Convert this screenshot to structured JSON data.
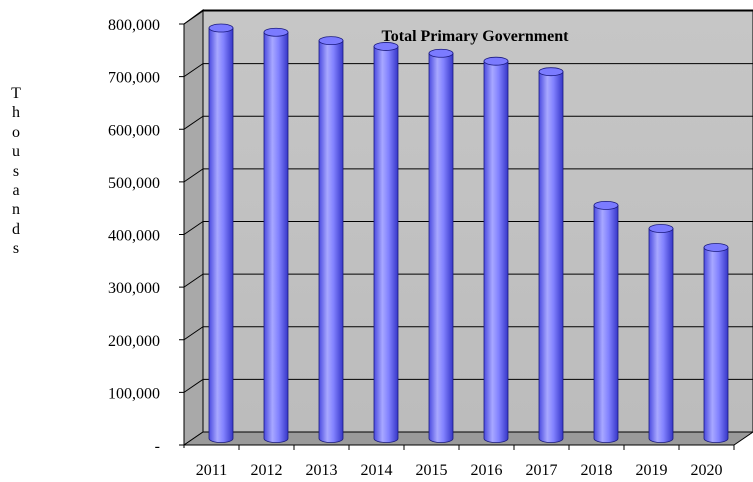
{
  "chart_data": {
    "type": "bar",
    "title": "Total Primary Government",
    "ylabel": "Thousands",
    "xlabel": "",
    "categories": [
      "2011",
      "2012",
      "2013",
      "2014",
      "2015",
      "2016",
      "2017",
      "2018",
      "2019",
      "2020"
    ],
    "series": [
      {
        "values": [
          780000,
          772000,
          756000,
          745000,
          732000,
          717000,
          697000,
          443000,
          399000,
          363000
        ]
      }
    ],
    "ylim": [
      0,
      800000
    ],
    "yticks": [
      "-",
      "100,000",
      "200,000",
      "300,000",
      "400,000",
      "500,000",
      "600,000",
      "700,000",
      "800,000"
    ],
    "grid": true,
    "colors": {
      "bar": "#7b7bff",
      "bar_dark": "#3a3ad0",
      "bar_light": "#c4c4ff",
      "wall": "#c0c0c0",
      "floor": "#9a9a9a",
      "gridline": "#000000"
    }
  }
}
